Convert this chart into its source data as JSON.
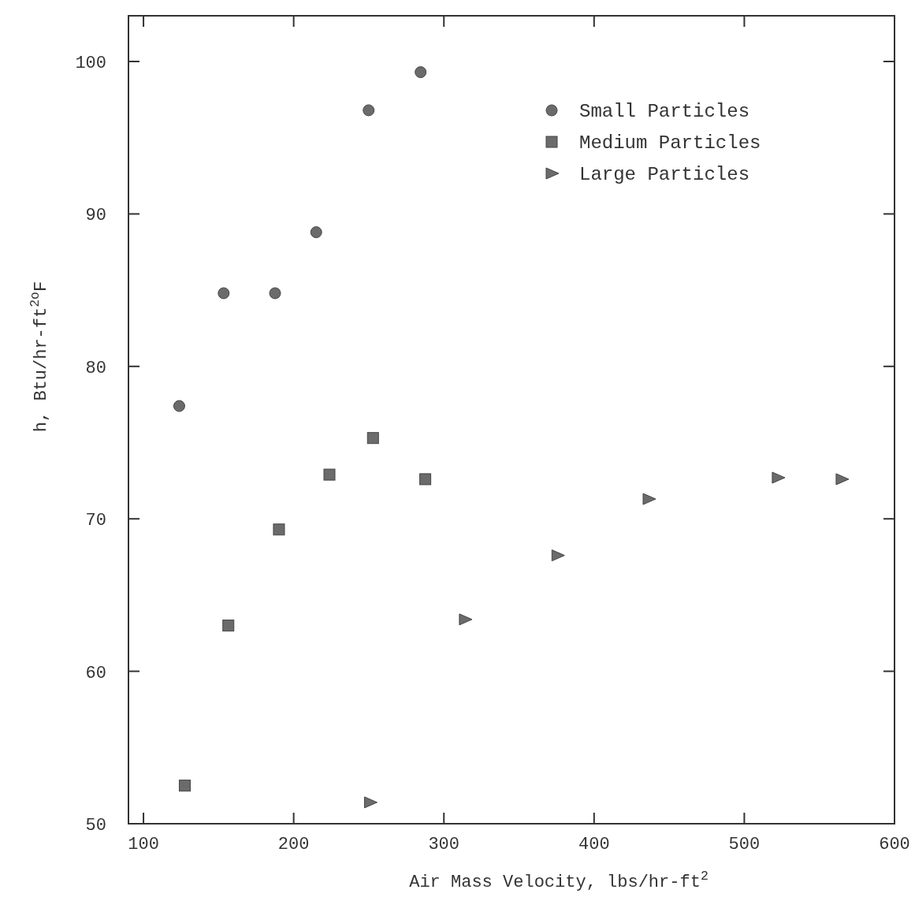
{
  "chart_data": {
    "type": "scatter",
    "xlabel": "Air Mass Velocity, lbs/hr-ft$^{2}$",
    "ylabel": "h, Btu/hr-ft$^{2o}$F",
    "xlim": [
      90,
      600
    ],
    "xticks": [
      100,
      200,
      300,
      400,
      500,
      600
    ],
    "ylim": [
      50,
      103
    ],
    "yticks": [
      50,
      60,
      70,
      80,
      90,
      100
    ],
    "grid": false,
    "legend": "top right",
    "series": [
      {
        "name": "Small Particles",
        "color": "#6b6b6b",
        "marker": "circle",
        "x": [
          123.8,
          153.4,
          187.6,
          215,
          249.9,
          284.5
        ],
        "values": [
          77.4,
          84.8,
          84.8,
          88.8,
          96.8,
          99.3
        ]
      },
      {
        "name": "Medium Particles",
        "color": "#6b6b6b",
        "marker": "square",
        "x": [
          127.5,
          156.5,
          190.2,
          223.8,
          252.8,
          287.6
        ],
        "values": [
          52.5,
          63.0,
          69.3,
          72.9,
          75.3,
          72.6
        ]
      },
      {
        "name": "Large Particles",
        "color": "#6b6b6b",
        "marker": "triangle",
        "x": [
          250.8,
          314,
          375.6,
          436.3,
          522.3,
          564.8
        ],
        "values": [
          51.4,
          63.4,
          67.6,
          71.3,
          72.7,
          72.6
        ]
      }
    ]
  }
}
